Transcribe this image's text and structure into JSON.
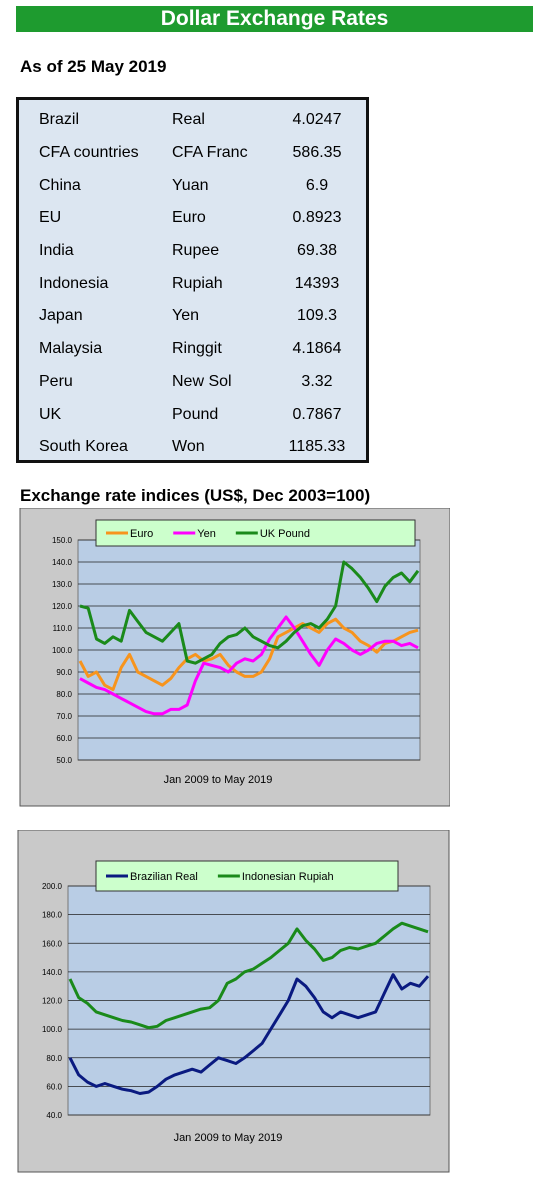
{
  "header": {
    "title": "Dollar Exchange Rates",
    "date": "As of 25 May 2019"
  },
  "table": {
    "rows": [
      [
        "Brazil",
        "Real",
        4.0247
      ],
      [
        "CFA countries",
        "CFA Franc",
        586.35
      ],
      [
        "China",
        "Yuan",
        6.9
      ],
      [
        "EU",
        "Euro",
        0.8923
      ],
      [
        "India",
        "Rupee",
        69.38
      ],
      [
        "Indonesia",
        "Rupiah",
        14393
      ],
      [
        "Japan",
        "Yen",
        109.3
      ],
      [
        "Malaysia",
        "Ringgit",
        4.1864
      ],
      [
        "Peru",
        "New Sol",
        3.32
      ],
      [
        "UK",
        "Pound",
        0.7867
      ],
      [
        "South Korea",
        "Won",
        1185.33
      ]
    ]
  },
  "section_title": "Exchange rate indices (US$, Dec 2003=100)",
  "chart_data": [
    {
      "type": "line",
      "x_label": "Jan 2009  to May 2019",
      "ylim": [
        50,
        150
      ],
      "yticks": [
        {
          "value": 50,
          "label": "50.0"
        },
        {
          "value": 60,
          "label": "60.0"
        },
        {
          "value": 70,
          "label": "70.0"
        },
        {
          "value": 80,
          "label": "80.0"
        },
        {
          "value": 90,
          "label": "90.0"
        },
        {
          "value": 100,
          "label": "100.0"
        },
        {
          "value": 110,
          "label": "110.0"
        },
        {
          "value": 120,
          "label": "120.0"
        },
        {
          "value": 130,
          "label": "130.0"
        },
        {
          "value": 140,
          "label": "140.0"
        },
        {
          "value": 150,
          "label": "150.0"
        }
      ],
      "grid": true,
      "series": [
        {
          "name": "Euro",
          "color": "#f7941d",
          "values": [
            95,
            88,
            90,
            84,
            82,
            92,
            98,
            90,
            88,
            86,
            84,
            87,
            92,
            96,
            98,
            95,
            96,
            98,
            93,
            90,
            88,
            88,
            90,
            96,
            106,
            108,
            110,
            112,
            110,
            108,
            112,
            114,
            110,
            108,
            104,
            102,
            99,
            103,
            104,
            106,
            108,
            109
          ]
        },
        {
          "name": "Yen",
          "color": "#ff00ff",
          "values": [
            87,
            85,
            83,
            82,
            80,
            78,
            76,
            74,
            72,
            71,
            71,
            73,
            73,
            75,
            86,
            94,
            93,
            92,
            90,
            94,
            96,
            95,
            98,
            105,
            110,
            115,
            110,
            104,
            98,
            93,
            100,
            105,
            103,
            100,
            98,
            100,
            103,
            104,
            104,
            102,
            103,
            101
          ]
        },
        {
          "name": "UK Pound",
          "color": "#1a8a1a",
          "values": [
            120,
            119,
            105,
            103,
            106,
            104,
            118,
            113,
            108,
            106,
            104,
            108,
            112,
            95,
            94,
            96,
            98,
            103,
            106,
            107,
            110,
            106,
            104,
            102,
            101,
            104,
            108,
            111,
            112,
            110,
            114,
            120,
            140,
            137,
            133,
            128,
            122,
            129,
            133,
            135,
            131,
            136
          ]
        }
      ]
    },
    {
      "type": "line",
      "x_label": "Jan 2009  to May 2019",
      "ylim": [
        40,
        200
      ],
      "yticks": [
        {
          "value": 40,
          "label": "40.0"
        },
        {
          "value": 60,
          "label": "60.0"
        },
        {
          "value": 80,
          "label": "80.0"
        },
        {
          "value": 100,
          "label": "100.0"
        },
        {
          "value": 120,
          "label": "120.0"
        },
        {
          "value": 140,
          "label": "140.0"
        },
        {
          "value": 160,
          "label": "160.0"
        },
        {
          "value": 180,
          "label": "180.0"
        },
        {
          "value": 200,
          "label": "200.0"
        }
      ],
      "grid": true,
      "series": [
        {
          "name": "Brazilian Real",
          "color": "#0a1a80",
          "values": [
            80,
            68,
            63,
            60,
            62,
            60,
            58,
            57,
            55,
            56,
            60,
            65,
            68,
            70,
            72,
            70,
            75,
            80,
            78,
            76,
            80,
            85,
            90,
            100,
            110,
            120,
            135,
            130,
            122,
            112,
            108,
            112,
            110,
            108,
            110,
            112,
            125,
            138,
            128,
            132,
            130,
            137
          ]
        },
        {
          "name": "Indonesian Rupiah",
          "color": "#1a8a1a",
          "values": [
            135,
            122,
            118,
            112,
            110,
            108,
            106,
            105,
            103,
            101,
            102,
            106,
            108,
            110,
            112,
            114,
            115,
            120,
            132,
            135,
            140,
            142,
            146,
            150,
            155,
            160,
            170,
            162,
            156,
            148,
            150,
            155,
            157,
            156,
            158,
            160,
            165,
            170,
            174,
            172,
            170,
            168
          ]
        }
      ]
    }
  ]
}
